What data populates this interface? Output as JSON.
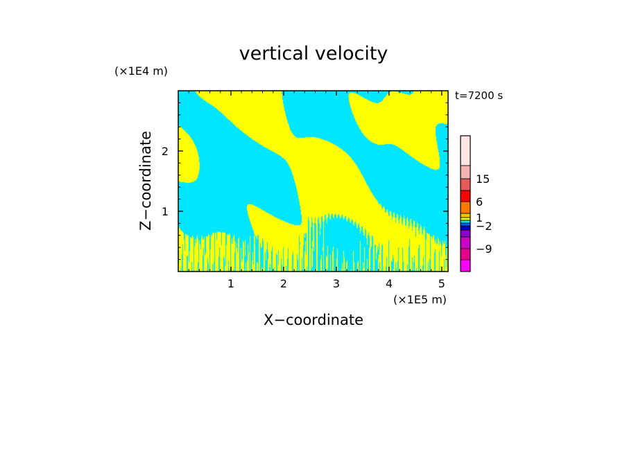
{
  "chart_data": {
    "type": "heatmap",
    "title": "vertical velocity",
    "time_label": "t=7200 s",
    "xlabel": "X−coordinate",
    "ylabel": "Z−coordinate",
    "x_unit": "(×1E5 m)",
    "y_unit": "(×1E4 m)",
    "xlim": [
      0.0,
      5.12
    ],
    "ylim": [
      0.0,
      3.0
    ],
    "x_ticks": [
      1,
      2,
      3,
      4,
      5
    ],
    "y_ticks": [
      1,
      2
    ],
    "x_tick_labels": [
      "1",
      "2",
      "3",
      "4",
      "5"
    ],
    "y_tick_labels": [
      "1",
      "2"
    ],
    "colorbar": {
      "levels": [
        -15,
        -12,
        -9,
        -6,
        -3,
        -2,
        -1,
        0,
        1,
        3,
        6,
        9,
        15,
        20,
        25
      ],
      "colors": [
        "#ff00ff",
        "#e4008c",
        "#c800c8",
        "#8c00c8",
        "#0000c8",
        "#0064ff",
        "#00e6ff",
        "#ffff00",
        "#e6c800",
        "#ff7800",
        "#ff0000",
        "#e65a5a",
        "#f5b4b4",
        "#ffe6e6"
      ],
      "tick_values": [
        15,
        6,
        1,
        -2,
        -9
      ],
      "tick_labels": [
        "15",
        "6",
        "1",
        "−2",
        "−9"
      ]
    },
    "field_colors": {
      "updraft": "#ffff00",
      "downdraft": "#00e6ff"
    }
  }
}
